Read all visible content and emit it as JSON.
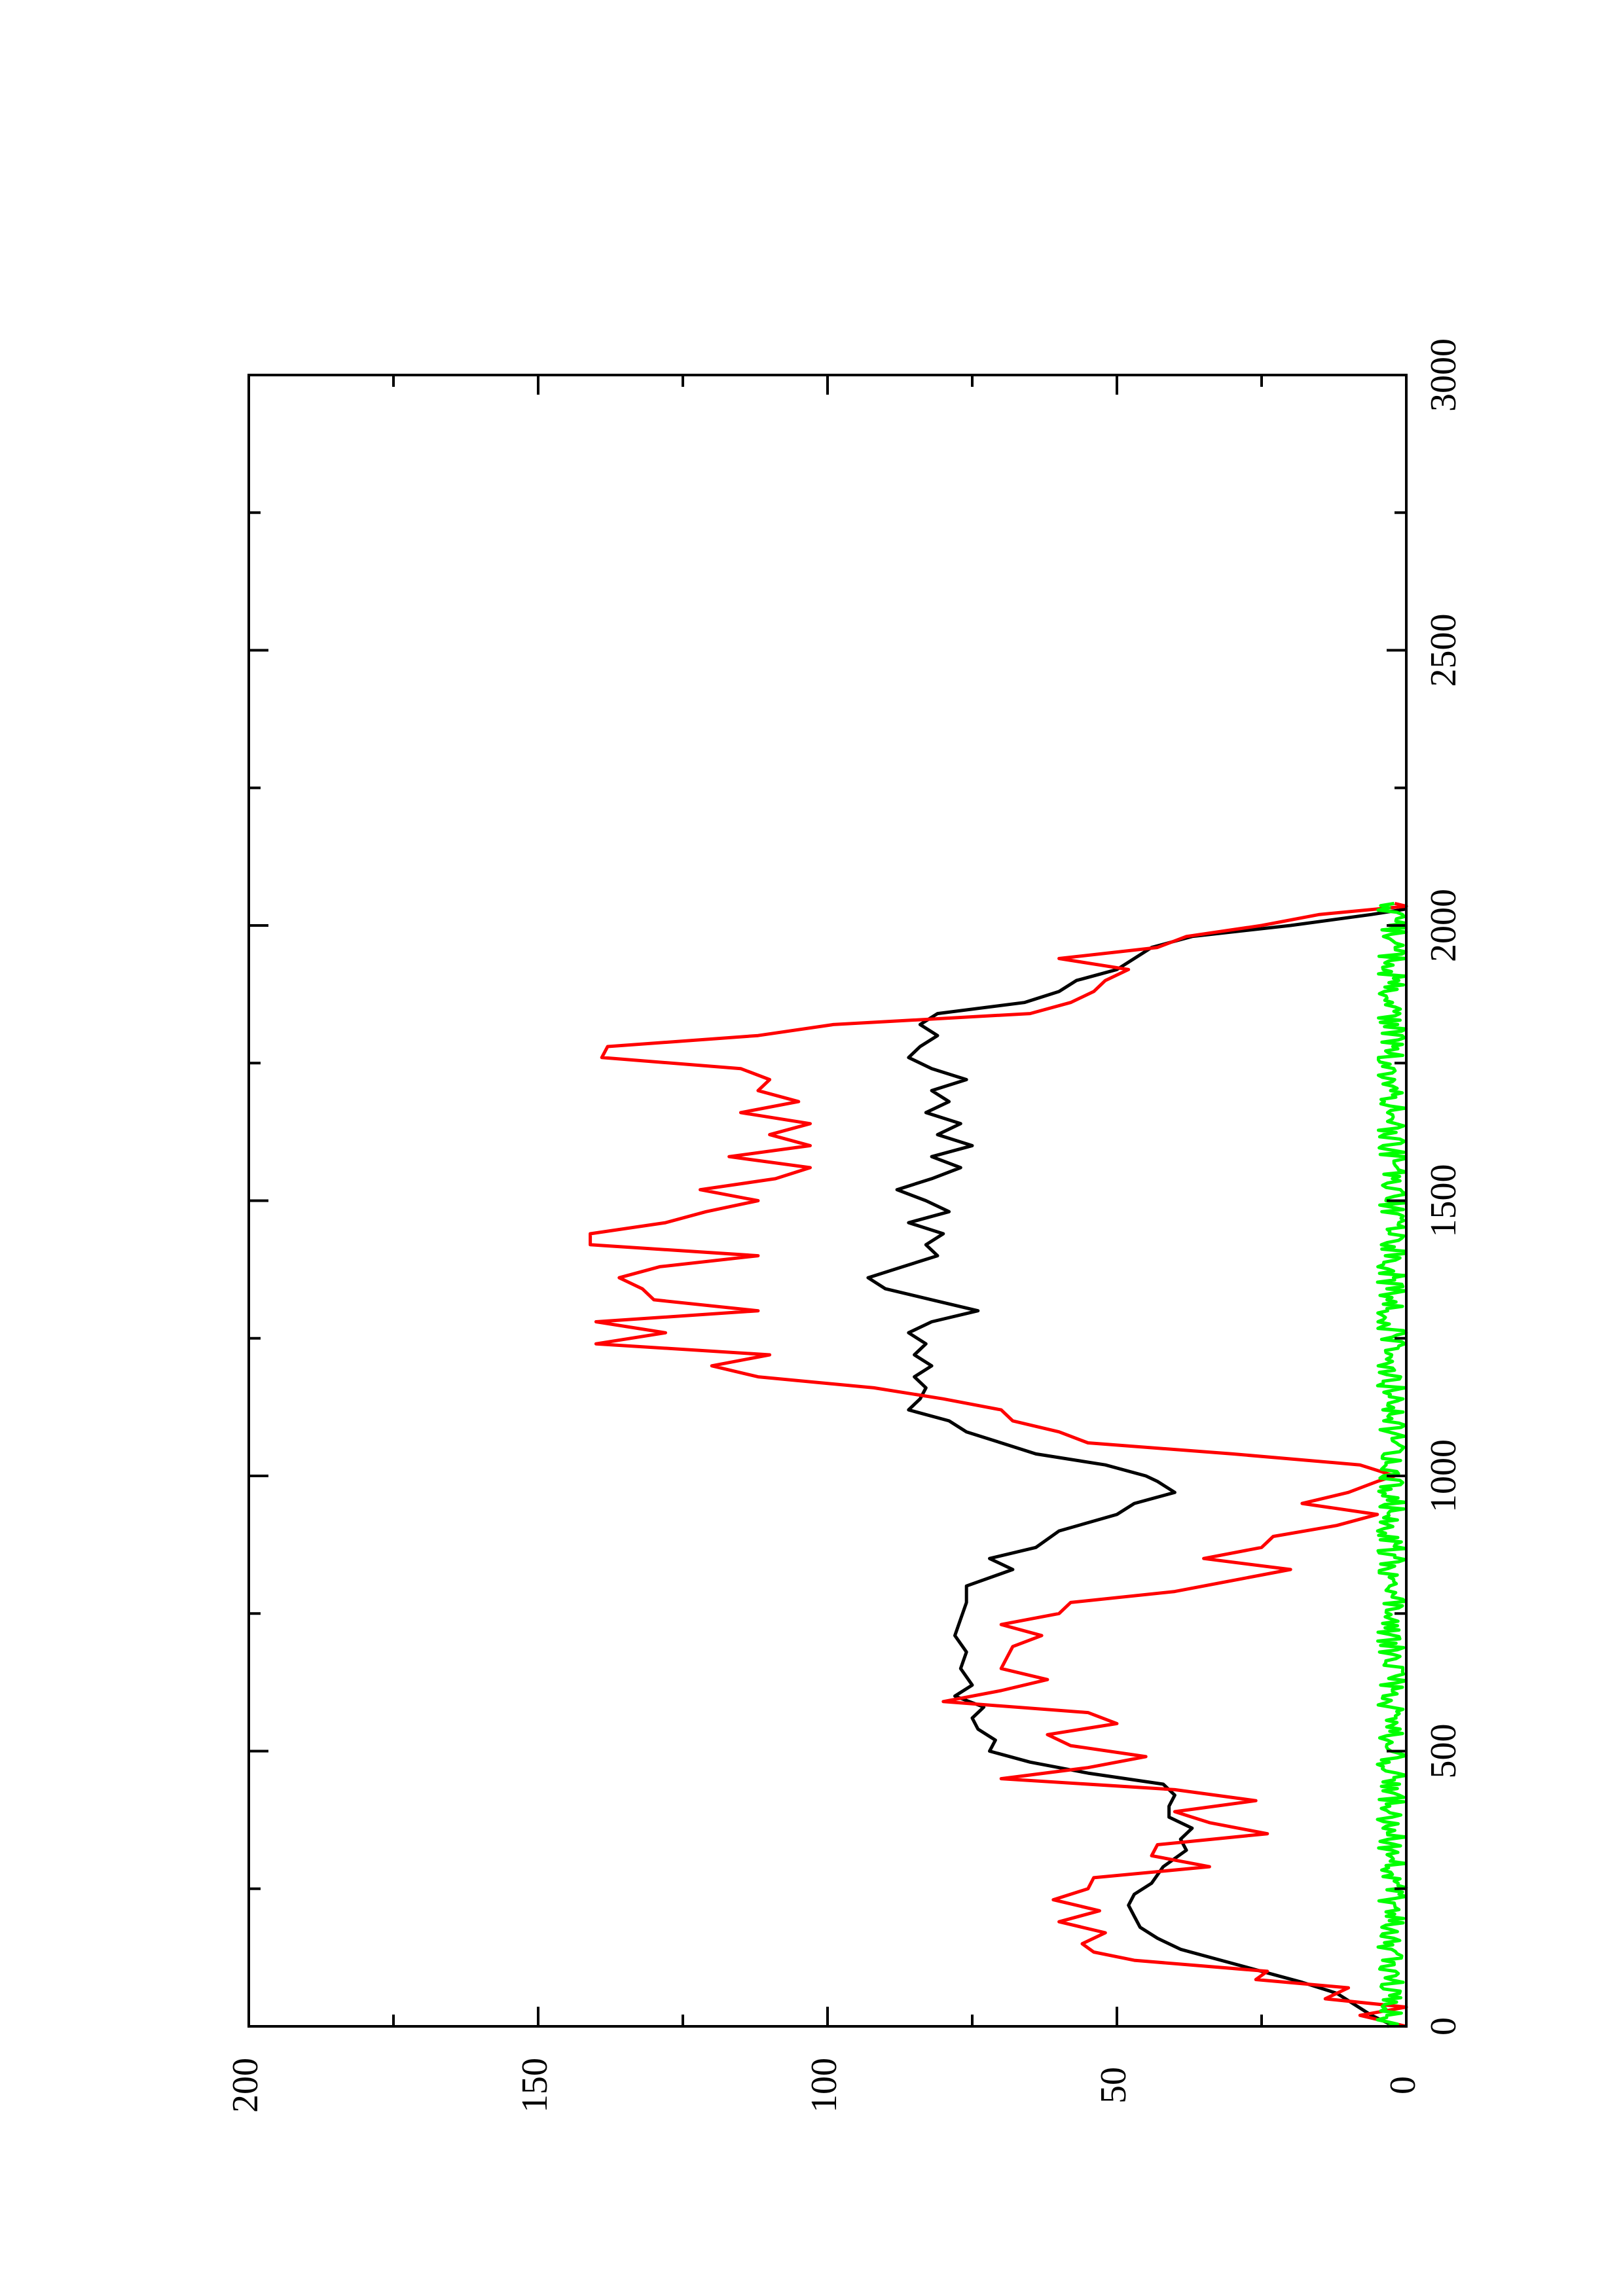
{
  "chart_data": {
    "type": "line",
    "title": "",
    "xlabel": "",
    "ylabel": "",
    "orientation": "rotated 90 degrees counter-clockwise (landscape plot on portrait page)",
    "xlim": [
      0,
      3000
    ],
    "ylim": [
      0,
      200
    ],
    "x_ticks": [
      "0",
      "500",
      "1000",
      "1500",
      "2000",
      "2500",
      "3000"
    ],
    "y_ticks": [
      "0",
      "50",
      "100",
      "150",
      "200"
    ],
    "x_minor_step": 250,
    "y_minor_step": 25,
    "grid": false,
    "legend": "none",
    "series": [
      {
        "color": "#000000",
        "points": [
          [
            0,
            2
          ],
          [
            20,
            6
          ],
          [
            40,
            9
          ],
          [
            60,
            12
          ],
          [
            80,
            18
          ],
          [
            100,
            25
          ],
          [
            120,
            32
          ],
          [
            140,
            39
          ],
          [
            160,
            43
          ],
          [
            180,
            46
          ],
          [
            200,
            47
          ],
          [
            220,
            48
          ],
          [
            240,
            47
          ],
          [
            260,
            44
          ],
          [
            290,
            42
          ],
          [
            320,
            38
          ],
          [
            340,
            39
          ],
          [
            360,
            37
          ],
          [
            380,
            41
          ],
          [
            400,
            41
          ],
          [
            420,
            40
          ],
          [
            440,
            42
          ],
          [
            460,
            55
          ],
          [
            480,
            65
          ],
          [
            500,
            72
          ],
          [
            520,
            71
          ],
          [
            540,
            74
          ],
          [
            560,
            75
          ],
          [
            580,
            73
          ],
          [
            600,
            78
          ],
          [
            620,
            75
          ],
          [
            650,
            77
          ],
          [
            680,
            76
          ],
          [
            710,
            78
          ],
          [
            740,
            77
          ],
          [
            770,
            76
          ],
          [
            800,
            76
          ],
          [
            830,
            68
          ],
          [
            850,
            72
          ],
          [
            870,
            64
          ],
          [
            900,
            60
          ],
          [
            930,
            50
          ],
          [
            950,
            47
          ],
          [
            970,
            40
          ],
          [
            990,
            43
          ],
          [
            1000,
            45
          ],
          [
            1020,
            52
          ],
          [
            1040,
            64
          ],
          [
            1060,
            70
          ],
          [
            1080,
            76
          ],
          [
            1100,
            79
          ],
          [
            1120,
            86
          ],
          [
            1140,
            84
          ],
          [
            1160,
            83
          ],
          [
            1180,
            85
          ],
          [
            1200,
            82
          ],
          [
            1220,
            85
          ],
          [
            1240,
            83
          ],
          [
            1260,
            86
          ],
          [
            1280,
            82
          ],
          [
            1300,
            74
          ],
          [
            1320,
            82
          ],
          [
            1340,
            90
          ],
          [
            1360,
            93
          ],
          [
            1380,
            87
          ],
          [
            1400,
            81
          ],
          [
            1420,
            83
          ],
          [
            1440,
            80
          ],
          [
            1460,
            86
          ],
          [
            1480,
            79
          ],
          [
            1500,
            83
          ],
          [
            1520,
            88
          ],
          [
            1540,
            82
          ],
          [
            1560,
            77
          ],
          [
            1580,
            82
          ],
          [
            1600,
            75
          ],
          [
            1620,
            81
          ],
          [
            1640,
            77
          ],
          [
            1660,
            83
          ],
          [
            1680,
            79
          ],
          [
            1700,
            82
          ],
          [
            1720,
            76
          ],
          [
            1740,
            82
          ],
          [
            1760,
            86
          ],
          [
            1780,
            84
          ],
          [
            1800,
            81
          ],
          [
            1820,
            84
          ],
          [
            1840,
            81
          ],
          [
            1860,
            66
          ],
          [
            1880,
            60
          ],
          [
            1900,
            57
          ],
          [
            1920,
            50
          ],
          [
            1940,
            47
          ],
          [
            1960,
            44
          ],
          [
            1980,
            37
          ],
          [
            2000,
            20
          ],
          [
            2020,
            6
          ],
          [
            2030,
            0
          ]
        ]
      },
      {
        "color": "#ff0000",
        "points": [
          [
            0,
            0
          ],
          [
            20,
            8
          ],
          [
            35,
            0
          ],
          [
            50,
            14
          ],
          [
            70,
            10
          ],
          [
            85,
            26
          ],
          [
            100,
            24
          ],
          [
            120,
            47
          ],
          [
            135,
            54
          ],
          [
            150,
            56
          ],
          [
            170,
            52
          ],
          [
            190,
            60
          ],
          [
            210,
            53
          ],
          [
            230,
            61
          ],
          [
            250,
            55
          ],
          [
            270,
            54
          ],
          [
            290,
            34
          ],
          [
            310,
            44
          ],
          [
            330,
            43
          ],
          [
            350,
            24
          ],
          [
            370,
            34
          ],
          [
            390,
            40
          ],
          [
            410,
            26
          ],
          [
            430,
            40
          ],
          [
            450,
            70
          ],
          [
            470,
            55
          ],
          [
            490,
            45
          ],
          [
            510,
            58
          ],
          [
            530,
            62
          ],
          [
            550,
            50
          ],
          [
            570,
            55
          ],
          [
            590,
            80
          ],
          [
            610,
            70
          ],
          [
            630,
            62
          ],
          [
            650,
            70
          ],
          [
            670,
            69
          ],
          [
            690,
            68
          ],
          [
            710,
            63
          ],
          [
            730,
            70
          ],
          [
            750,
            60
          ],
          [
            770,
            58
          ],
          [
            790,
            40
          ],
          [
            810,
            30
          ],
          [
            830,
            20
          ],
          [
            850,
            35
          ],
          [
            870,
            25
          ],
          [
            890,
            23
          ],
          [
            910,
            12
          ],
          [
            930,
            5
          ],
          [
            950,
            18
          ],
          [
            970,
            10
          ],
          [
            990,
            5
          ],
          [
            1000,
            2
          ],
          [
            1020,
            8
          ],
          [
            1040,
            30
          ],
          [
            1060,
            55
          ],
          [
            1080,
            60
          ],
          [
            1100,
            68
          ],
          [
            1120,
            70
          ],
          [
            1140,
            80
          ],
          [
            1160,
            92
          ],
          [
            1180,
            112
          ],
          [
            1200,
            120
          ],
          [
            1220,
            110
          ],
          [
            1240,
            140
          ],
          [
            1260,
            128
          ],
          [
            1280,
            140
          ],
          [
            1300,
            112
          ],
          [
            1320,
            130
          ],
          [
            1340,
            132
          ],
          [
            1360,
            136
          ],
          [
            1380,
            129
          ],
          [
            1400,
            112
          ],
          [
            1420,
            141
          ],
          [
            1440,
            141
          ],
          [
            1460,
            128
          ],
          [
            1480,
            121
          ],
          [
            1500,
            112
          ],
          [
            1520,
            122
          ],
          [
            1540,
            109
          ],
          [
            1560,
            103
          ],
          [
            1580,
            117
          ],
          [
            1600,
            103
          ],
          [
            1620,
            110
          ],
          [
            1640,
            103
          ],
          [
            1660,
            115
          ],
          [
            1680,
            105
          ],
          [
            1700,
            112
          ],
          [
            1720,
            110
          ],
          [
            1740,
            115
          ],
          [
            1760,
            139
          ],
          [
            1780,
            138
          ],
          [
            1800,
            112
          ],
          [
            1820,
            99
          ],
          [
            1840,
            65
          ],
          [
            1860,
            58
          ],
          [
            1880,
            54
          ],
          [
            1900,
            52
          ],
          [
            1920,
            48
          ],
          [
            1940,
            60
          ],
          [
            1960,
            43
          ],
          [
            1980,
            38
          ],
          [
            2000,
            25
          ],
          [
            2020,
            15
          ],
          [
            2035,
            0
          ],
          [
            2040,
            2
          ]
        ]
      },
      {
        "color": "#00ff00",
        "x_start": 0,
        "x_end": 2040,
        "y_range": [
          0,
          5
        ],
        "description_of_values": "noisy values fluctuating between 0 and about 5 across the full range"
      }
    ]
  }
}
